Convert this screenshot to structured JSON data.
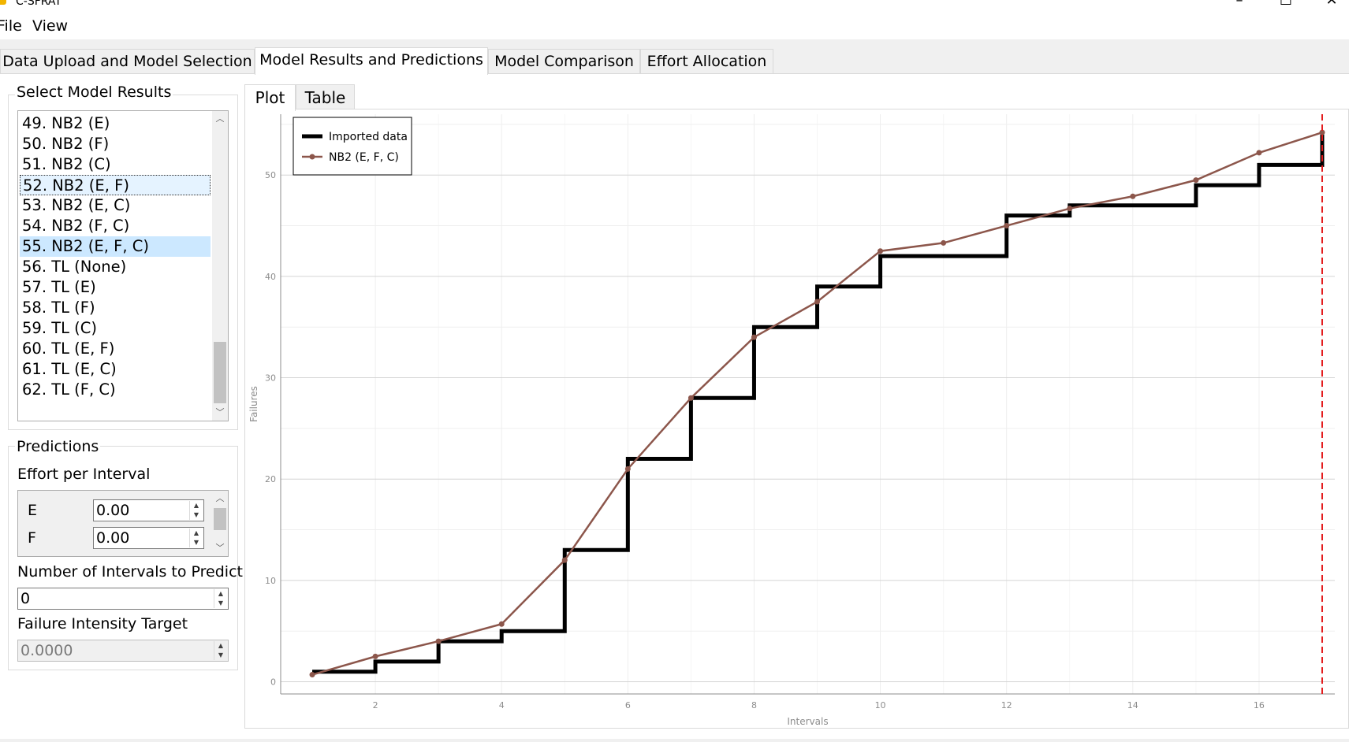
{
  "window": {
    "title": "C-SFRAT",
    "controls": [
      "–",
      "☐",
      "✕"
    ]
  },
  "menu": [
    "File",
    "View"
  ],
  "tabs": [
    {
      "label": "Data Upload and Model Selection"
    },
    {
      "label": "Model Results and Predictions"
    },
    {
      "label": "Model Comparison"
    },
    {
      "label": "Effort Allocation"
    }
  ],
  "model_results": {
    "title": "Select Model Results",
    "items": [
      "49. NB2 (E)",
      "50. NB2 (F)",
      "51. NB2 (C)",
      "52. NB2 (E, F)",
      "53. NB2 (E, C)",
      "54. NB2 (F, C)",
      "55. NB2 (E, F, C)",
      "56. TL (None)",
      "57. TL (E)",
      "58. TL (F)",
      "59. TL (C)",
      "60. TL (E, F)",
      "61. TL (E, C)",
      "62. TL (F, C)"
    ],
    "current_index": 3,
    "selected_index": 6
  },
  "predictions": {
    "title": "Predictions",
    "effort_label": "Effort per Interval",
    "effort_rows": [
      {
        "name": "E",
        "value": "0.00"
      },
      {
        "name": "F",
        "value": "0.00"
      }
    ],
    "intervals_label": "Number of Intervals to Predict",
    "intervals_value": "0",
    "intensity_label": "Failure Intensity Target",
    "intensity_value": "0.0000"
  },
  "subtabs": [
    "Plot",
    "Table"
  ],
  "icons": {
    "app": "app-icon",
    "scroll_up": "chevron-up-icon",
    "scroll_down": "chevron-down-icon",
    "spin_up": "spin-up-icon",
    "spin_down": "spin-down-icon"
  },
  "colors": {
    "imported": "#000000",
    "model": "#8c564b",
    "target_line": "#e31a1c",
    "selection": "#cce8ff"
  },
  "chart_data": {
    "type": "line",
    "xlabel": "Intervals",
    "ylabel": "Failures",
    "xlim": [
      0.5,
      17.2
    ],
    "ylim": [
      -1.2,
      56
    ],
    "xticks": [
      2,
      4,
      6,
      8,
      10,
      12,
      14,
      16
    ],
    "yticks": [
      0,
      10,
      20,
      30,
      40,
      50
    ],
    "legend_placement": "top-left",
    "vertical_marker_x": 17,
    "series": [
      {
        "name": "Imported data",
        "style": "step",
        "x": [
          1,
          2,
          3,
          4,
          5,
          6,
          7,
          8,
          9,
          10,
          11,
          12,
          13,
          14,
          15,
          16,
          17
        ],
        "y": [
          1,
          2,
          4,
          5,
          13,
          22,
          28,
          35,
          39,
          42,
          42,
          46,
          47,
          47,
          49,
          51,
          54
        ]
      },
      {
        "name": "NB2 (E, F, C)",
        "style": "line-markers",
        "x": [
          1,
          2,
          3,
          4,
          5,
          6,
          7,
          8,
          9,
          10,
          11,
          12,
          13,
          14,
          15,
          16,
          17
        ],
        "y": [
          0.7,
          2.5,
          4.0,
          5.7,
          12.0,
          21.0,
          28.0,
          34.0,
          37.5,
          42.5,
          43.3,
          45.0,
          46.7,
          47.9,
          49.5,
          52.2,
          54.2
        ]
      }
    ]
  }
}
